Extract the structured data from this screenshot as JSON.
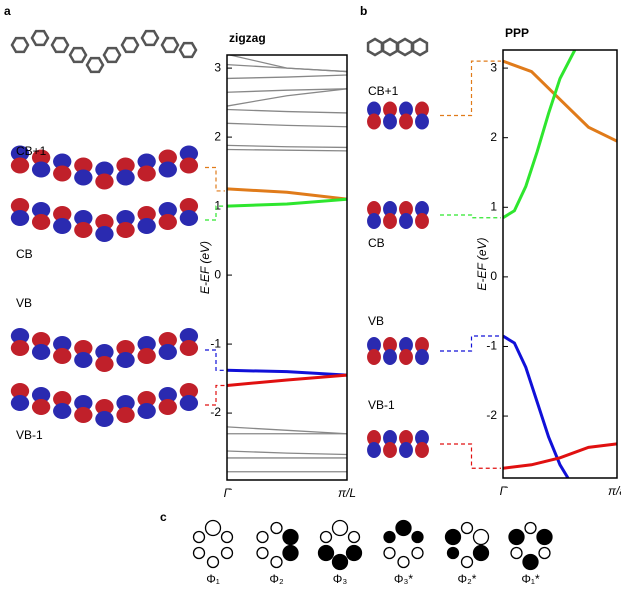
{
  "chart_data": [
    {
      "type": "line",
      "panel": "a",
      "title": "zigzag",
      "ylabel": "E-EF (eV)",
      "xlim": [
        0,
        1
      ],
      "xticks": [
        {
          "value": 0,
          "label": "Γ̄"
        },
        {
          "value": 1,
          "label": "π/L"
        }
      ],
      "ylim": [
        -2.97,
        3.19
      ],
      "yticks": [
        -2,
        -1,
        0,
        1,
        2,
        3
      ],
      "annotations": [
        "CB+1",
        "CB",
        "VB",
        "VB-1"
      ],
      "series": [
        {
          "color": "#888888",
          "x": [
            0,
            0.5,
            1
          ],
          "values": [
            3.2,
            3.0,
            2.95
          ]
        },
        {
          "color": "#888888",
          "x": [
            0,
            0.5,
            1
          ],
          "values": [
            3.05,
            3.0,
            2.95
          ]
        },
        {
          "color": "#888888",
          "x": [
            0,
            0.5,
            1
          ],
          "values": [
            2.85,
            2.87,
            2.9
          ]
        },
        {
          "color": "#888888",
          "x": [
            0,
            0.5,
            1
          ],
          "values": [
            2.65,
            2.68,
            2.7
          ]
        },
        {
          "color": "#888888",
          "x": [
            0,
            0.5,
            1
          ],
          "values": [
            2.45,
            2.6,
            2.7
          ]
        },
        {
          "color": "#888888",
          "x": [
            0,
            0.5,
            1
          ],
          "values": [
            2.4,
            2.37,
            2.35
          ]
        },
        {
          "color": "#888888",
          "x": [
            0,
            0.5,
            1
          ],
          "values": [
            2.2,
            2.17,
            2.15
          ]
        },
        {
          "color": "#888888",
          "x": [
            0,
            0.5,
            1
          ],
          "values": [
            1.88,
            1.86,
            1.85
          ]
        },
        {
          "color": "#888888",
          "x": [
            0,
            0.5,
            1
          ],
          "values": [
            1.82,
            1.81,
            1.8
          ]
        },
        {
          "color": "#888888",
          "x": [
            0,
            0.5,
            1
          ],
          "values": [
            -2.2,
            -2.25,
            -2.3
          ]
        },
        {
          "color": "#888888",
          "x": [
            0,
            0.5,
            1
          ],
          "values": [
            -2.3,
            -2.3,
            -2.3
          ]
        },
        {
          "color": "#888888",
          "x": [
            0,
            0.5,
            1
          ],
          "values": [
            -2.55,
            -2.58,
            -2.6
          ]
        },
        {
          "color": "#888888",
          "x": [
            0,
            0.5,
            1
          ],
          "values": [
            -2.65,
            -2.65,
            -2.65
          ]
        },
        {
          "color": "#888888",
          "x": [
            0,
            0.5,
            1
          ],
          "values": [
            -2.85,
            -2.85,
            -2.85
          ]
        },
        {
          "color": "#e07b1a",
          "x": [
            0,
            0.5,
            1
          ],
          "values": [
            1.25,
            1.2,
            1.1
          ]
        },
        {
          "color": "#2ee62e",
          "x": [
            0,
            0.5,
            1
          ],
          "values": [
            1.0,
            1.03,
            1.1
          ]
        },
        {
          "color": "#1010d8",
          "x": [
            0,
            0.5,
            1
          ],
          "values": [
            -1.38,
            -1.4,
            -1.45
          ]
        },
        {
          "color": "#e01010",
          "x": [
            0,
            0.5,
            1
          ],
          "values": [
            -1.6,
            -1.52,
            -1.45
          ]
        }
      ]
    },
    {
      "type": "line",
      "panel": "b",
      "title": "PPP",
      "ylabel": "E-EF (eV)",
      "xlim": [
        0,
        1
      ],
      "xticks": [
        {
          "value": 0,
          "label": "Γ̄"
        },
        {
          "value": 1,
          "label": "π/a"
        }
      ],
      "ylim": [
        -2.89,
        3.26
      ],
      "yticks": [
        -2,
        -1,
        0,
        1,
        2,
        3
      ],
      "annotations": [
        "CB+1",
        "CB",
        "VB",
        "VB-1"
      ],
      "series": [
        {
          "color": "#e07b1a",
          "x": [
            0,
            0.25,
            0.5,
            0.75,
            1
          ],
          "values": [
            3.1,
            2.95,
            2.55,
            2.15,
            1.95
          ]
        },
        {
          "color": "#2ee62e",
          "x": [
            0,
            0.1,
            0.2,
            0.3,
            0.4,
            0.5,
            0.63
          ],
          "values": [
            0.85,
            0.95,
            1.3,
            1.8,
            2.35,
            2.85,
            3.26
          ]
        },
        {
          "color": "#1010d8",
          "x": [
            0,
            0.1,
            0.2,
            0.3,
            0.4,
            0.5,
            0.57
          ],
          "values": [
            -0.85,
            -0.95,
            -1.3,
            -1.8,
            -2.3,
            -2.7,
            -2.89
          ]
        },
        {
          "color": "#e01010",
          "x": [
            0,
            0.25,
            0.5,
            0.75,
            1
          ],
          "values": [
            -2.75,
            -2.7,
            -2.6,
            -2.45,
            -2.4
          ]
        }
      ]
    }
  ],
  "panel_c": {
    "label": "c",
    "items": [
      "Φ₁",
      "Φ₂",
      "Φ₃",
      "Φ₃*",
      "Φ₂*",
      "Φ₁*"
    ]
  }
}
